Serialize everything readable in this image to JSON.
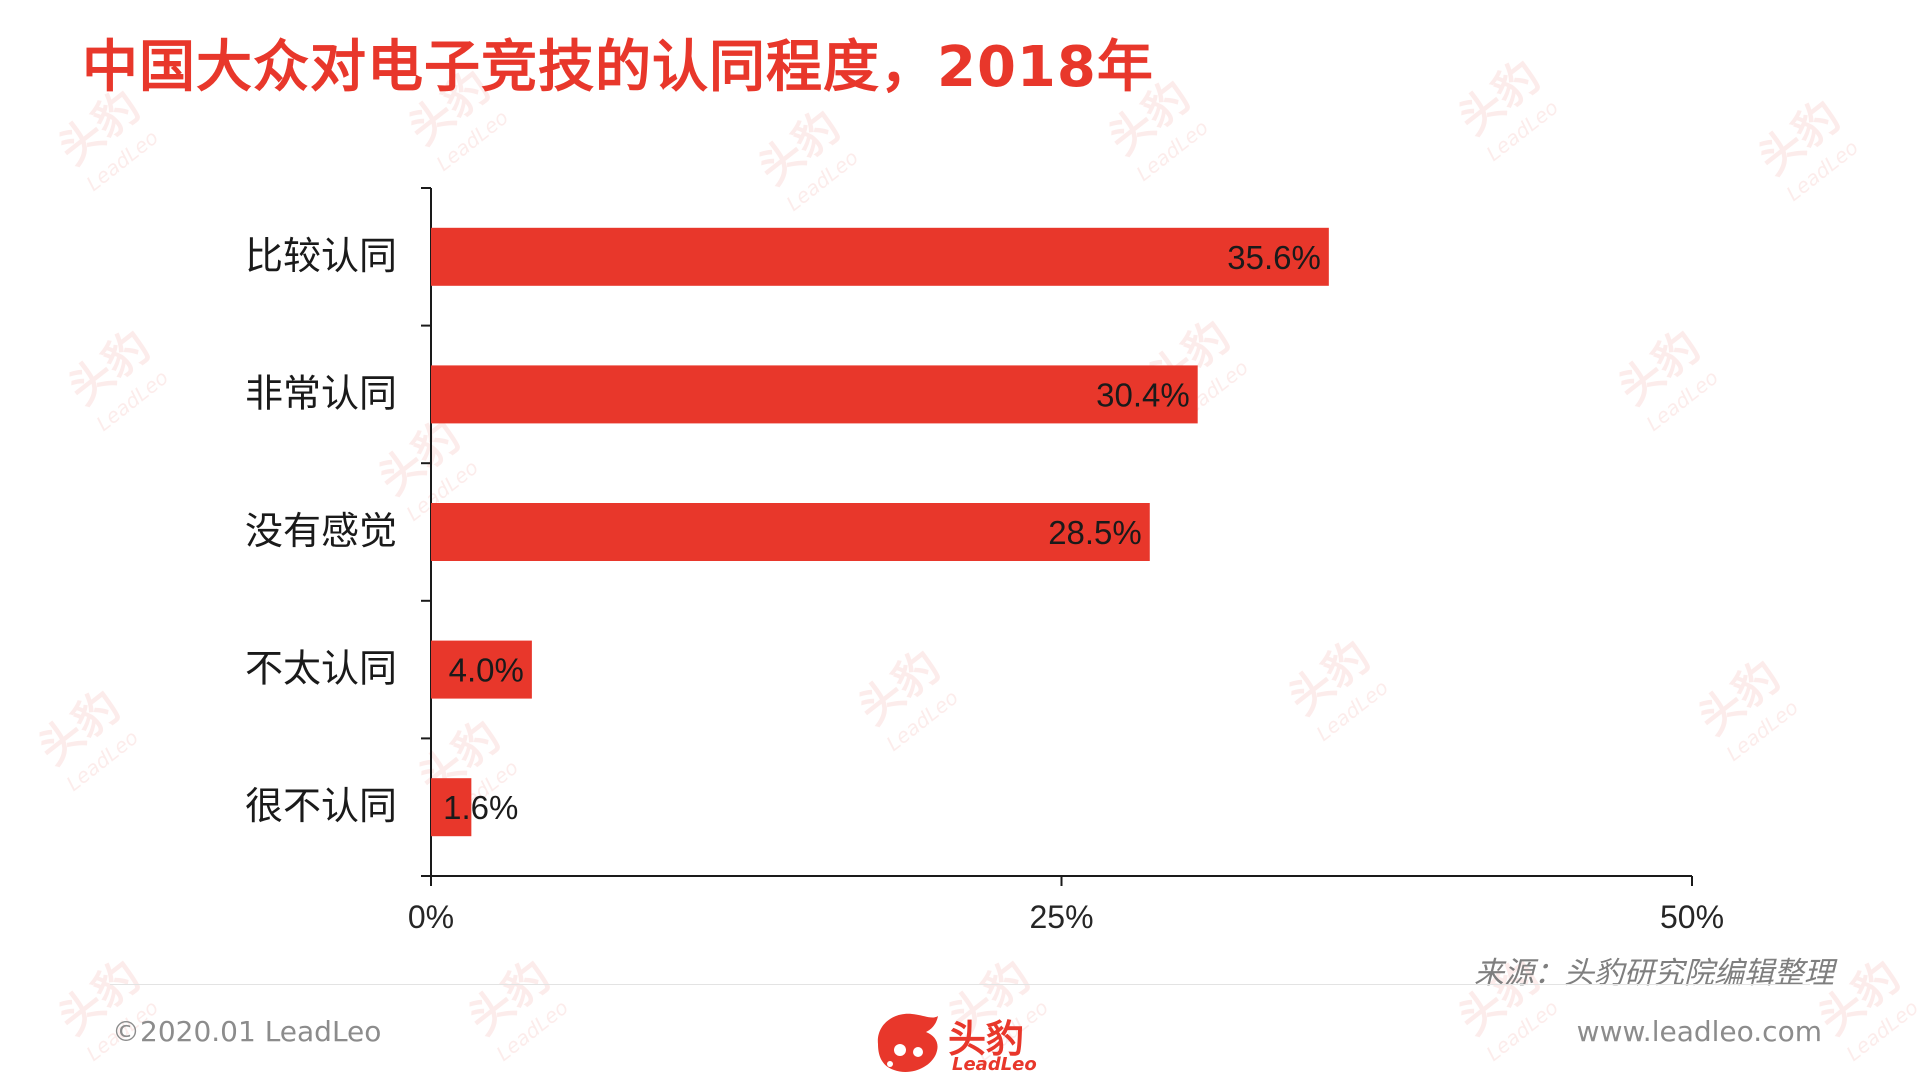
{
  "title": "中国大众对电子竞技的认同程度，2018年",
  "colors": {
    "accent": "#e8372b",
    "axis": "#1a1a1a",
    "footer_text": "#8c8c8c"
  },
  "chart_data": {
    "type": "bar",
    "orientation": "horizontal",
    "categories": [
      "比较认同",
      "非常认同",
      "没有感觉",
      "不太认同",
      "很不认同"
    ],
    "values": [
      35.6,
      30.4,
      28.5,
      4.0,
      1.6
    ],
    "value_labels": [
      "35.6%",
      "30.4%",
      "28.5%",
      "4.0%",
      "1.6%"
    ],
    "xlim": [
      0,
      50
    ],
    "xticks": [
      0,
      25,
      50
    ],
    "xtick_labels": [
      "0%",
      "25%",
      "50%"
    ],
    "grid": false,
    "legend": "none",
    "bar_color": "#e8372b"
  },
  "source": "来源：头豹研究院编辑整理",
  "footer": {
    "copyright": "©2020.01 LeadLeo",
    "website": "www.leadleo.com",
    "logo_cn": "头豹",
    "logo_en": "LeadLeo"
  },
  "watermark": {
    "cn": "头豹",
    "en": "LeadLeo"
  }
}
